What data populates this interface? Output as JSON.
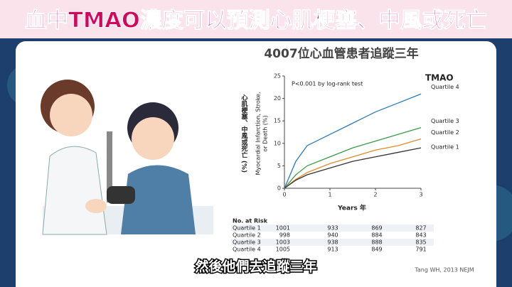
{
  "slide_title": "血中TMAO濃度可以預測心肌梗塞、中風或死亡",
  "chart_data": {
    "type": "line",
    "title": "4007位心血管患者追蹤三年",
    "annotation": "P<0.001 by log-rank test",
    "legend_title": "TMAO",
    "xlabel": "Years 年",
    "ylabel_zh": "心肌梗塞、中風或死亡 (%)",
    "ylabel_en": [
      "Myocardial Infarction, Stroke,",
      "or Death (%)"
    ],
    "x": [
      0,
      0.25,
      0.5,
      1,
      1.5,
      2,
      2.5,
      3
    ],
    "series": [
      {
        "name": "Quartile 4",
        "color": "#2a7ab8",
        "values": [
          0,
          6,
          9.5,
          12,
          14.5,
          17,
          19,
          21
        ]
      },
      {
        "name": "Quartile 3",
        "color": "#3a9a4a",
        "values": [
          0,
          3,
          5,
          7,
          9,
          10.5,
          12,
          13.5
        ]
      },
      {
        "name": "Quartile 2",
        "color": "#e08a2c",
        "values": [
          0,
          2,
          3.5,
          5.5,
          7,
          8.5,
          9.5,
          11
        ]
      },
      {
        "name": "Quartile 1",
        "color": "#333333",
        "values": [
          0,
          1.8,
          3,
          4.5,
          6,
          7,
          8,
          9
        ]
      }
    ],
    "xlim": [
      0,
      3
    ],
    "xticks": [
      0,
      1,
      2,
      3
    ],
    "ylim": [
      0,
      25
    ],
    "yticks": [
      0,
      5,
      10,
      15,
      20,
      25
    ]
  },
  "risk_table": {
    "title": "No. at Risk",
    "rows": [
      {
        "name": "Quartile 1",
        "values": [
          "1001",
          "933",
          "869",
          "827"
        ]
      },
      {
        "name": "Quartile 2",
        "values": [
          "998",
          "940",
          "884",
          "843"
        ]
      },
      {
        "name": "Quartile 3",
        "values": [
          "1003",
          "938",
          "888",
          "835"
        ]
      },
      {
        "name": "Quartile 4",
        "values": [
          "1005",
          "913",
          "849",
          "791"
        ]
      }
    ]
  },
  "caption": "然後他們去追蹤三年",
  "source": "Tang WH, 2013 NEJM"
}
